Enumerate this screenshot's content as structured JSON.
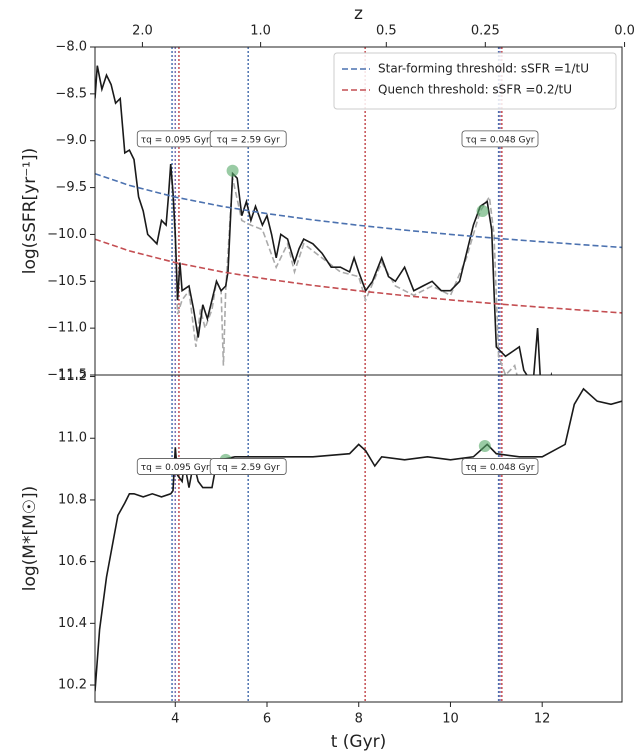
{
  "chart_data": [
    {
      "type": "line",
      "ylabel": "log(sSFR[yr⁻¹])",
      "x2label": "z",
      "xlim": [
        2.25,
        13.74
      ],
      "x2ticks": [
        {
          "value": 2.0,
          "label": "2.0"
        },
        {
          "value": 1.0,
          "label": "1.0"
        },
        {
          "value": 0.5,
          "label": "0.5"
        },
        {
          "value": 0.25,
          "label": "0.25"
        },
        {
          "value": 0.0,
          "label": "0.0"
        }
      ],
      "ylim": [
        -11.5,
        -8.0
      ],
      "yticks": [
        {
          "value": -8.0,
          "label": "−8.0"
        },
        {
          "value": -8.5,
          "label": "−8.5"
        },
        {
          "value": -9.0,
          "label": "−9.0"
        },
        {
          "value": -9.5,
          "label": "−9.5"
        },
        {
          "value": -10.0,
          "label": "−10.0"
        },
        {
          "value": -10.5,
          "label": "−10.5"
        },
        {
          "value": -11.0,
          "label": "−11.0"
        },
        {
          "value": -11.5,
          "label": "−11.5"
        }
      ],
      "legend": "upper right",
      "series": [
        {
          "color": "#aaaaaa",
          "dash": true,
          "x": [
            3.9,
            3.95,
            4.0,
            4.05,
            4.15,
            4.3,
            4.45,
            4.55,
            4.65,
            4.8,
            4.9,
            5.0,
            5.05,
            5.1,
            5.25,
            5.45,
            5.65,
            5.9,
            6.2,
            6.45,
            6.6,
            6.8,
            7.2,
            7.6,
            8.0,
            8.15,
            8.5,
            8.8,
            9.2,
            9.6,
            10.0,
            10.35,
            10.65,
            10.85,
            10.95,
            11.05,
            11.2,
            11.4,
            11.6
          ],
          "values": [
            -9.3,
            -9.6,
            -10.1,
            -10.85,
            -10.7,
            -10.6,
            -11.2,
            -10.8,
            -11.0,
            -10.8,
            -10.5,
            -10.6,
            -11.4,
            -10.6,
            -9.4,
            -9.85,
            -9.9,
            -9.95,
            -10.35,
            -10.1,
            -10.4,
            -10.1,
            -10.25,
            -10.4,
            -10.45,
            -10.7,
            -10.3,
            -10.55,
            -10.65,
            -10.55,
            -10.65,
            -10.25,
            -9.75,
            -9.6,
            -10.0,
            -11.3,
            -11.5,
            -11.4,
            -11.8
          ]
        },
        {
          "color": "#1a1a1a",
          "x": [
            2.25,
            2.3,
            2.4,
            2.5,
            2.6,
            2.7,
            2.8,
            2.9,
            3.0,
            3.1,
            3.2,
            3.3,
            3.4,
            3.5,
            3.6,
            3.7,
            3.8,
            3.85,
            3.9,
            3.95,
            4.0,
            4.05,
            4.1,
            4.15,
            4.3,
            4.4,
            4.5,
            4.6,
            4.7,
            4.8,
            4.9,
            5.0,
            5.1,
            5.15,
            5.25,
            5.35,
            5.45,
            5.55,
            5.65,
            5.75,
            5.9,
            6.0,
            6.1,
            6.2,
            6.3,
            6.45,
            6.6,
            6.7,
            6.8,
            7.0,
            7.2,
            7.4,
            7.6,
            7.8,
            7.9,
            8.0,
            8.15,
            8.3,
            8.5,
            8.65,
            8.8,
            9.0,
            9.2,
            9.4,
            9.6,
            9.8,
            10.0,
            10.2,
            10.35,
            10.5,
            10.65,
            10.8,
            10.9,
            10.95,
            11.0,
            11.2,
            11.35,
            11.5,
            11.6,
            11.8,
            11.9,
            12.0,
            12.2,
            12.5
          ],
          "values": [
            -8.55,
            -8.2,
            -8.45,
            -8.3,
            -8.4,
            -8.6,
            -8.55,
            -9.13,
            -9.1,
            -9.2,
            -9.6,
            -9.75,
            -10.0,
            -10.05,
            -10.1,
            -9.85,
            -9.9,
            -9.6,
            -9.25,
            -9.55,
            -10.0,
            -10.7,
            -10.3,
            -10.6,
            -10.55,
            -10.8,
            -11.1,
            -10.75,
            -10.9,
            -10.7,
            -10.5,
            -10.6,
            -10.55,
            -10.4,
            -9.35,
            -9.4,
            -9.8,
            -9.65,
            -9.85,
            -9.7,
            -9.9,
            -9.8,
            -10.0,
            -10.25,
            -10.0,
            -10.05,
            -10.3,
            -10.15,
            -10.05,
            -10.1,
            -10.2,
            -10.35,
            -10.35,
            -10.4,
            -10.25,
            -10.4,
            -10.6,
            -10.5,
            -10.25,
            -10.45,
            -10.5,
            -10.35,
            -10.6,
            -10.55,
            -10.5,
            -10.6,
            -10.6,
            -10.5,
            -10.2,
            -9.9,
            -9.7,
            -9.65,
            -9.95,
            -10.6,
            -11.2,
            -11.3,
            -11.25,
            -11.2,
            -11.45,
            -11.6,
            -11.0,
            -11.9,
            -11.5,
            -12.0
          ]
        },
        {
          "name": "Star-forming threshold: sSFR =1/tU",
          "color": "#4c72b0",
          "dash": true,
          "x": [
            2.25,
            3,
            4,
            5,
            6,
            7,
            8,
            9,
            10,
            11,
            12,
            13,
            13.74
          ],
          "values": [
            -9.352,
            -9.477,
            -9.602,
            -9.699,
            -9.778,
            -9.845,
            -9.903,
            -9.954,
            -10.0,
            -10.041,
            -10.079,
            -10.114,
            -10.138
          ]
        },
        {
          "name": "Quench threshold: sSFR =0.2/tU",
          "color": "#c44e52",
          "dash": true,
          "x": [
            2.25,
            3,
            4,
            5,
            6,
            7,
            8,
            9,
            10,
            11,
            12,
            13,
            13.74
          ],
          "values": [
            -10.051,
            -10.176,
            -10.301,
            -10.398,
            -10.477,
            -10.544,
            -10.602,
            -10.653,
            -10.699,
            -10.74,
            -10.778,
            -10.813,
            -10.837
          ]
        }
      ],
      "vlines": {
        "x": [
          3.93,
          4.0,
          4.08,
          5.59,
          8.14,
          11.05,
          11.08,
          11.12
        ],
        "colors": [
          "#4c72b0",
          "#8172b2",
          "#c44e52",
          "#4c72b0",
          "#c44e52",
          "#4c72b0",
          "#8172b2",
          "#c44e52"
        ]
      },
      "annotations": [
        {
          "text": "τq = 0.095 Gyr",
          "x": 4.0
        },
        {
          "text": "τq = 2.59 Gyr",
          "x": 5.59
        },
        {
          "text": "τq = 0.048 Gyr",
          "x": 11.08
        }
      ],
      "highlights": {
        "color": "#55a868",
        "x": [
          5.25,
          10.7
        ],
        "values": [
          -9.32,
          -9.75
        ]
      }
    },
    {
      "type": "line",
      "ylabel": "log(M*[M☉])",
      "xlabel": "t (Gyr)",
      "xlim": [
        2.25,
        13.74
      ],
      "xticks": [
        4,
        6,
        8,
        10,
        12
      ],
      "ylim": [
        10.145,
        11.205
      ],
      "yticks": [
        {
          "value": 10.2,
          "label": "10.2"
        },
        {
          "value": 10.4,
          "label": "10.4"
        },
        {
          "value": 10.6,
          "label": "10.6"
        },
        {
          "value": 10.8,
          "label": "10.8"
        },
        {
          "value": 11.0,
          "label": "11.0"
        },
        {
          "value": 11.2,
          "label": "11.2"
        }
      ],
      "series": [
        {
          "color": "#1a1a1a",
          "x": [
            2.25,
            2.35,
            2.5,
            2.75,
            2.9,
            3.0,
            3.1,
            3.3,
            3.5,
            3.7,
            3.9,
            3.95,
            4.0,
            4.05,
            4.15,
            4.2,
            4.3,
            4.4,
            4.5,
            4.6,
            4.8,
            4.9,
            5.0,
            5.3,
            5.6,
            6,
            7,
            7.8,
            8.0,
            8.15,
            8.35,
            8.5,
            9,
            9.5,
            10,
            10.5,
            10.8,
            11.0,
            11.5,
            12,
            12.5,
            12.7,
            12.9,
            13.2,
            13.5,
            13.74
          ],
          "values": [
            10.18,
            10.38,
            10.55,
            10.75,
            10.79,
            10.82,
            10.82,
            10.81,
            10.82,
            10.81,
            10.82,
            10.83,
            10.97,
            10.88,
            10.86,
            10.92,
            10.84,
            10.92,
            10.86,
            10.84,
            10.84,
            10.92,
            10.93,
            10.94,
            10.94,
            10.94,
            10.94,
            10.95,
            10.98,
            10.96,
            10.91,
            10.94,
            10.93,
            10.94,
            10.93,
            10.94,
            10.98,
            10.95,
            10.94,
            10.94,
            10.98,
            11.11,
            11.16,
            11.12,
            11.11,
            11.12
          ]
        }
      ],
      "vlines": {
        "x": [
          3.93,
          4.0,
          4.08,
          5.59,
          8.14,
          11.05,
          11.08,
          11.12
        ],
        "colors": [
          "#4c72b0",
          "#8172b2",
          "#c44e52",
          "#4c72b0",
          "#c44e52",
          "#4c72b0",
          "#8172b2",
          "#c44e52"
        ]
      },
      "annotations": [
        {
          "text": "τq = 0.095 Gyr",
          "x": 4.0
        },
        {
          "text": "τq = 2.59 Gyr",
          "x": 5.59
        },
        {
          "text": "τq = 0.048 Gyr",
          "x": 11.08
        }
      ],
      "highlights": {
        "color": "#55a868",
        "x": [
          5.1,
          10.75
        ],
        "values": [
          10.93,
          10.975
        ]
      }
    }
  ]
}
